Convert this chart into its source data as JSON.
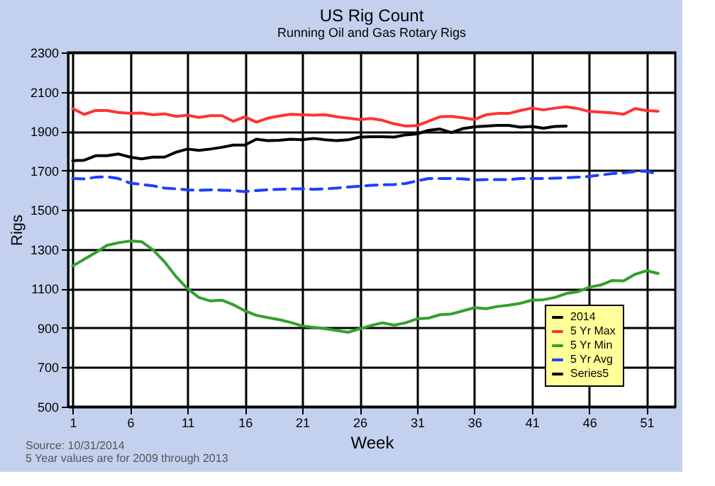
{
  "chart_data": {
    "type": "line",
    "title": "US Rig Count",
    "subtitle": "Running Oil and Gas Rotary Rigs",
    "xlabel": "Week",
    "ylabel": "Rigs",
    "xlim": [
      0.6,
      53.5
    ],
    "xticks": [
      1,
      6,
      11,
      16,
      21,
      26,
      31,
      36,
      41,
      46,
      51
    ],
    "ylim": [
      500,
      2300
    ],
    "yticks": [
      500,
      700,
      900,
      1100,
      1300,
      1500,
      1700,
      1900,
      2100,
      2300
    ],
    "x": [
      1,
      2,
      3,
      4,
      5,
      6,
      7,
      8,
      9,
      10,
      11,
      12,
      13,
      14,
      15,
      16,
      17,
      18,
      19,
      20,
      21,
      22,
      23,
      24,
      25,
      26,
      27,
      28,
      29,
      30,
      31,
      32,
      33,
      34,
      35,
      36,
      37,
      38,
      39,
      40,
      41,
      42,
      43,
      44,
      45,
      46,
      47,
      48,
      49,
      50,
      51,
      52
    ],
    "grid": true,
    "legend": "bottom right",
    "marker": "none",
    "series": [
      {
        "name": "2014",
        "color": "#000000",
        "line_style": "solid",
        "values": [
          1750,
          1752,
          1775,
          1775,
          1784,
          1768,
          1759,
          1768,
          1768,
          1793,
          1809,
          1802,
          1809,
          1818,
          1829,
          1829,
          1859,
          1852,
          1854,
          1859,
          1856,
          1863,
          1856,
          1852,
          1856,
          1870,
          1872,
          1872,
          1870,
          1881,
          1886,
          1904,
          1911,
          1893,
          1913,
          1922,
          1926,
          1929,
          1929,
          1920,
          1924,
          1915,
          1924,
          1926,
          null,
          null,
          null,
          null,
          null,
          null,
          null,
          null
        ]
      },
      {
        "name": "5 Yr Max",
        "color": "#ff3333",
        "line_style": "solid",
        "values": [
          2015,
          1985,
          2005,
          2005,
          1995,
          1990,
          1992,
          1983,
          1988,
          1975,
          1981,
          1970,
          1979,
          1979,
          1950,
          1973,
          1946,
          1966,
          1977,
          1986,
          1983,
          1981,
          1983,
          1973,
          1966,
          1959,
          1964,
          1955,
          1937,
          1926,
          1928,
          1950,
          1973,
          1975,
          1968,
          1959,
          1983,
          1990,
          1990,
          2005,
          2017,
          2008,
          2017,
          2024,
          2015,
          2000,
          1997,
          1993,
          1986,
          2015,
          2005,
          2001
        ]
      },
      {
        "name": "5 Yr Min",
        "color": "#33a02c",
        "line_style": "solid",
        "values": [
          1215,
          1249,
          1283,
          1320,
          1333,
          1342,
          1338,
          1297,
          1236,
          1161,
          1100,
          1055,
          1037,
          1041,
          1018,
          987,
          964,
          953,
          942,
          928,
          910,
          903,
          896,
          887,
          878,
          896,
          912,
          926,
          914,
          926,
          946,
          950,
          967,
          971,
          987,
          1003,
          998,
          1009,
          1016,
          1025,
          1041,
          1043,
          1055,
          1075,
          1084,
          1107,
          1118,
          1141,
          1139,
          1173,
          1191,
          1177
        ]
      },
      {
        "name": "5 Yr Avg",
        "color": "#1f3fff",
        "line_style": "dashed",
        "values": [
          1659,
          1657,
          1666,
          1668,
          1659,
          1636,
          1629,
          1622,
          1611,
          1607,
          1602,
          1600,
          1602,
          1600,
          1598,
          1593,
          1598,
          1602,
          1604,
          1607,
          1607,
          1604,
          1607,
          1611,
          1616,
          1620,
          1625,
          1627,
          1629,
          1634,
          1647,
          1659,
          1659,
          1659,
          1657,
          1652,
          1654,
          1654,
          1654,
          1659,
          1659,
          1659,
          1661,
          1663,
          1666,
          1670,
          1677,
          1684,
          1688,
          1695,
          1697,
          1681
        ]
      },
      {
        "name": "Series5",
        "color": "#000000",
        "line_style": "solid",
        "values": [
          null,
          null,
          null,
          null,
          null,
          null,
          null,
          null,
          null,
          null,
          null,
          null,
          null,
          null,
          null,
          null,
          null,
          null,
          null,
          null,
          null,
          null,
          null,
          null,
          null,
          null,
          null,
          null,
          null,
          null,
          null,
          null,
          null,
          null,
          null,
          null,
          null,
          null,
          null,
          null,
          null,
          null,
          null,
          null,
          null,
          null,
          null,
          null,
          null,
          null,
          null,
          null
        ]
      }
    ],
    "annotations": [
      "Source: 10/31/2014",
      "5 Year values are for 2009 through 2013"
    ]
  }
}
